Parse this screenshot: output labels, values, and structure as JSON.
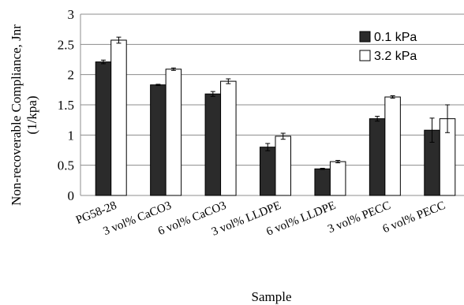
{
  "chart_data": {
    "type": "bar",
    "title": "",
    "xlabel": "Sample",
    "ylabel_line1": "Non-recoverable Compliance, Jnr",
    "ylabel_line2": "(1/kpa)",
    "ylim": [
      0,
      3
    ],
    "yticks": [
      "0",
      "0.5",
      "1",
      "1.5",
      "2",
      "2.5",
      "3"
    ],
    "grid": "horizontal",
    "legend_position": "top-right",
    "categories": [
      "PG58-28",
      "3 vol% CaCO3",
      "6 vol% CaCO3",
      "3 vol% LLDPE",
      "6 vol% LLDPE",
      "3 vol% PECC",
      "6 vol% PECC"
    ],
    "series": [
      {
        "name": "0.1 kPa",
        "color": "#2b2b2b",
        "values": [
          2.21,
          1.83,
          1.68,
          0.8,
          0.44,
          1.27,
          1.08
        ],
        "errors": [
          0.03,
          0.01,
          0.04,
          0.06,
          0.01,
          0.04,
          0.2
        ]
      },
      {
        "name": "3.2 kPa",
        "color": "#ffffff",
        "values": [
          2.57,
          2.09,
          1.89,
          0.98,
          0.56,
          1.63,
          1.27
        ],
        "errors": [
          0.05,
          0.02,
          0.04,
          0.05,
          0.02,
          0.02,
          0.23
        ]
      }
    ]
  }
}
